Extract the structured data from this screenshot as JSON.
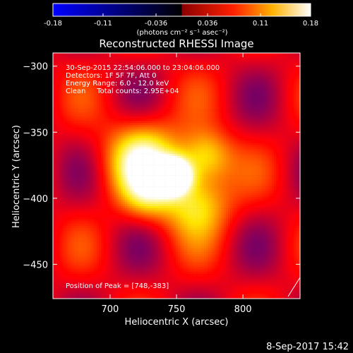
{
  "chart_data": {
    "type": "heatmap",
    "title": "Reconstructed RHESSI Image",
    "xlabel": "Heliocentric X (arcsec)",
    "ylabel": "Heliocentric Y (arcsec)",
    "xlim": [
      657,
      843
    ],
    "ylim": [
      -476,
      -290
    ],
    "x_ticks": [
      700,
      750,
      800
    ],
    "y_ticks": [
      -300,
      -350,
      -400,
      -450
    ],
    "colorbar": {
      "min": -0.18,
      "max": 0.18,
      "tick_values": [
        -0.18,
        -0.11,
        -0.036,
        0.036,
        0.11,
        0.18
      ],
      "tick_labels": [
        "-0.18",
        "-0.11",
        "-0.036",
        "0.036",
        "0.11",
        "0.18"
      ],
      "units": "(photons cm⁻² s⁻¹ asec⁻²)",
      "colors": [
        "#0000ff",
        "#000000",
        "#ff0000",
        "#ffff00",
        "#ffffff"
      ]
    },
    "info_lines": [
      "30-Sep-2015 22:54:06.000 to 23:04:06.000",
      "Detectors: 1F 5F 7F, Att 0",
      "Energy Range: 6.0 - 12.0 keV",
      "Clean     Total counts: 2.95E+04"
    ],
    "peak": {
      "x": 748,
      "y": -383,
      "label": "Position of Peak = [748,-383]"
    },
    "sources": [
      {
        "x": 748,
        "y": -383,
        "amplitude": 0.18,
        "sigma": 9
      },
      {
        "x": 725,
        "y": -370,
        "amplitude": 0.11,
        "sigma": 20
      },
      {
        "x": 772,
        "y": -368,
        "amplitude": 0.09,
        "sigma": 14
      },
      {
        "x": 765,
        "y": -403,
        "amplitude": 0.09,
        "sigma": 18
      },
      {
        "x": 728,
        "y": -398,
        "amplitude": 0.06,
        "sigma": 14
      }
    ],
    "background": 0.05
  },
  "footer": {
    "timestamp": "8-Sep-2017 15:42"
  }
}
